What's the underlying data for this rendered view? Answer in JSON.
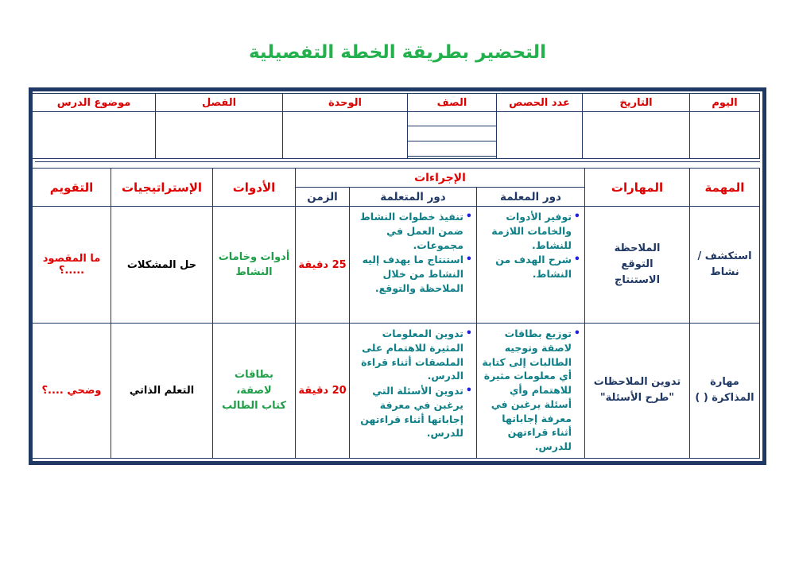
{
  "page": {
    "title": "التحضير بطريقة الخطة التفصيلية"
  },
  "colors": {
    "title_green": "#22B14C",
    "header_red": "#E00000",
    "border_navy": "#1F3864",
    "text_navy": "#1F3864",
    "role_teal": "#0E7F87",
    "bullet_blue": "#2222DD",
    "tools_green": "#1E9E46",
    "strategies_black": "#000000"
  },
  "info_table": {
    "headers": {
      "day": "اليوم",
      "date": "التاريخ",
      "periods": "عدد الحصص",
      "class": "الصف",
      "unit": "الوحدة",
      "semester": "الفصل",
      "topic": "موضوع الدرس"
    }
  },
  "plan_table": {
    "headers": {
      "task": "المهمة",
      "skills": "المهارات",
      "procedures": "الإجراءات",
      "teacher_role": "دور المعلمة",
      "learner_role": "دور المتعلمة",
      "time": "الزمن",
      "tools": "الأدوات",
      "strategies": "الإستراتيجيات",
      "evaluation": "التقويم"
    },
    "rows": [
      {
        "task": "استكشف /\nنشاط",
        "skills": "الملاحظة\nالتوقع\nالاستنتاج",
        "teacher_role": [
          "توفير الأدوات والخامات اللازمة للنشاط.",
          "شرح الهدف من النشاط."
        ],
        "learner_role": [
          "تنفيذ خطوات النشاط ضمن العمل في مجموعات.",
          "استنتاج ما يهدف إليه النشاط من خلال الملاحظة والتوقع."
        ],
        "time": "25 دقيقة",
        "tools": "أدوات وخامات\nالنشاط",
        "strategies": "حل المشكلات",
        "evaluation": "ما المقصود .....؟"
      },
      {
        "task": "مهارة\nالمذاكرة (  )",
        "skills": "تدوين الملاحظات\n\"طرح الأسئلة\"",
        "teacher_role": [
          "توزيع بطاقات لاصقة وتوجيه الطالبات إلى كتابة أي معلومات مثيرة للاهتمام وأي أسئلة يرغبن في معرفة إجاباتها أثناء قراءتهن للدرس."
        ],
        "learner_role": [
          "تدوين المعلومات المثيرة للاهتمام على الملصقات أثناء قراءة الدرس.",
          "تدوين الأسئلة التي يرغبن في معرفة إجاباتها أثناء قراءتهن للدرس."
        ],
        "time": "20 دقيقة",
        "tools": "بطاقات لاصقة،\nكتاب الطالب",
        "strategies": "التعلم الذاتي",
        "evaluation": "وضحي ....؟"
      }
    ]
  }
}
